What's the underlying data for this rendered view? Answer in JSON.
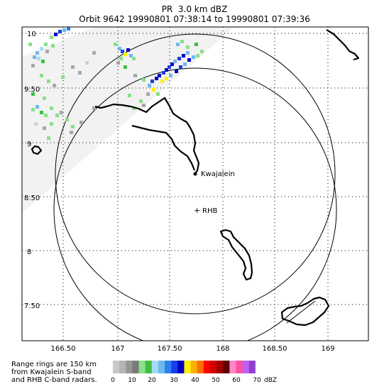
{
  "title": {
    "line1": "PR  3.0 km dBZ",
    "line2": "Orbit 9642 19990801 07:38:14 to 19990801 07:39:36"
  },
  "map": {
    "lon_ticks": [
      "166.50",
      "167",
      "167.50",
      "168",
      "168.50",
      "169"
    ],
    "lat_ticks": [
      "10",
      "9.50",
      "9",
      "8.50",
      "8",
      "7.50"
    ],
    "places": [
      {
        "name": "Kwajalein",
        "marker": "dot"
      },
      {
        "name": "RHB",
        "marker": "+"
      }
    ]
  },
  "note": {
    "line1": "Range rings are 150 km",
    "line2": "from Kwajalein S-band",
    "line3": "and RHB C-band radars."
  },
  "colorbar": {
    "labels": [
      "0",
      "10",
      "20",
      "30",
      "40",
      "50",
      "60",
      "70"
    ],
    "unit": "dBZ",
    "colors": [
      "#c8c8c8",
      "#b4b4b4",
      "#969696",
      "#7a7a7a",
      "#88e088",
      "#40c040",
      "#a8d8f8",
      "#70b8f0",
      "#3080f0",
      "#1840e8",
      "#0000c0",
      "#fff000",
      "#ffb000",
      "#ff7000",
      "#ff0000",
      "#d00000",
      "#a00000",
      "#600000",
      "#ff88c8",
      "#ff50a0",
      "#c060f0",
      "#9040d0",
      "#ffffff"
    ]
  }
}
